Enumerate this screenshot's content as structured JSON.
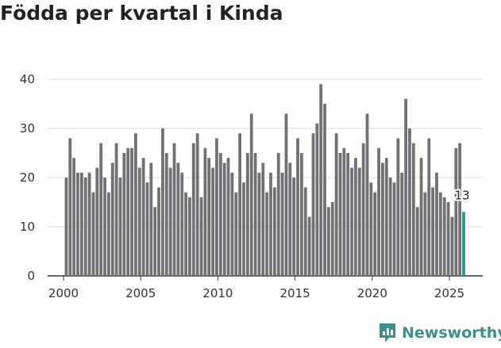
{
  "chart_data": {
    "type": "bar",
    "title": "Födda per kvartal i Kinda",
    "xlabel": "",
    "ylabel": "",
    "ylim": [
      0,
      42
    ],
    "yticks": [
      0,
      10,
      20,
      30,
      40
    ],
    "xticks": [
      2000,
      2005,
      2010,
      2015,
      2020,
      2025
    ],
    "x_start": 2000,
    "bar_color": "#717074",
    "highlight_color": "#1e9c90",
    "grid": true,
    "last_label": "13",
    "values": [
      20,
      28,
      24,
      21,
      21,
      20,
      21,
      17,
      22,
      27,
      20,
      17,
      23,
      27,
      20,
      25,
      26,
      26,
      29,
      22,
      24,
      19,
      23,
      14,
      18,
      30,
      25,
      22,
      27,
      23,
      21,
      17,
      16,
      27,
      29,
      16,
      26,
      24,
      22,
      28,
      25,
      23,
      24,
      21,
      17,
      29,
      19,
      25,
      33,
      25,
      21,
      23,
      17,
      21,
      18,
      25,
      21,
      33,
      23,
      20,
      28,
      25,
      18,
      12,
      29,
      31,
      39,
      35,
      14,
      15,
      29,
      25,
      26,
      25,
      22,
      24,
      22,
      27,
      33,
      19,
      17,
      26,
      23,
      24,
      20,
      19,
      28,
      21,
      36,
      30,
      27,
      14,
      24,
      17,
      28,
      18,
      21,
      17,
      16,
      15,
      12,
      26,
      27,
      13
    ]
  },
  "brand": {
    "name": "Newsworthy"
  },
  "colors": {
    "logo": "#3a8f8f"
  }
}
